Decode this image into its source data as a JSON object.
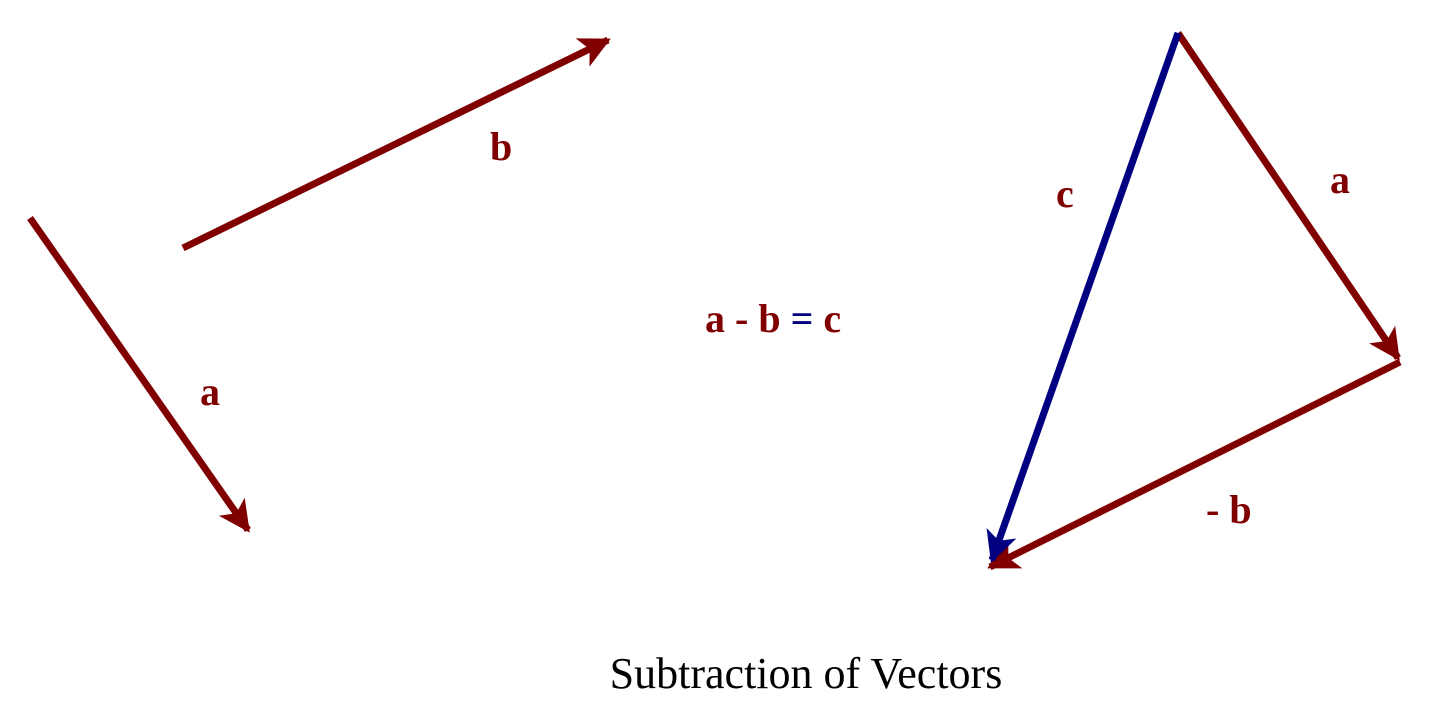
{
  "diagram": {
    "left_vectors": [
      {
        "label": "a"
      },
      {
        "label": "b"
      }
    ],
    "equation": {
      "parts": [
        "a",
        "-",
        "b",
        "=",
        "c"
      ]
    },
    "triangle_vectors": [
      {
        "label": "c"
      },
      {
        "label": "a"
      },
      {
        "label": "- b"
      }
    ],
    "caption": "Subtraction of Vectors"
  }
}
